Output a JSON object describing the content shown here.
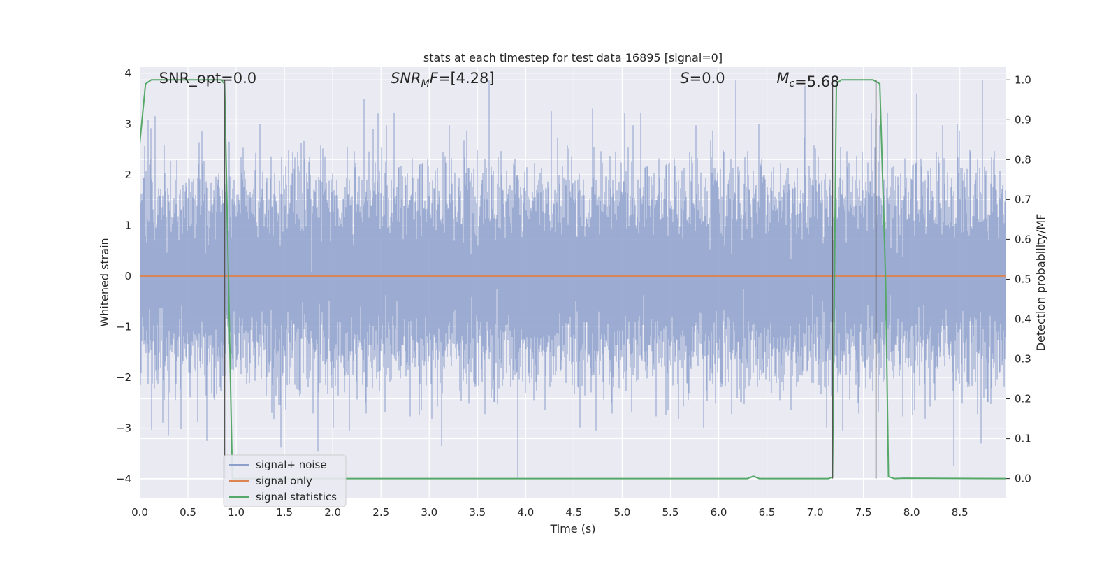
{
  "chart_data": {
    "type": "line",
    "title": "stats at each timestep for test data 16895 [signal=0]",
    "xlabel": "Time (s)",
    "ylabel": "Whitened strain",
    "ylabel_right": "Detection probability/MF",
    "xlim": [
      0.0,
      8.98
    ],
    "ylim": [
      -4.37,
      4.12
    ],
    "ylim_right": [
      -0.048,
      1.032
    ],
    "x_ticks": [
      0.0,
      0.5,
      1.0,
      1.5,
      2.0,
      2.5,
      3.0,
      3.5,
      4.0,
      4.5,
      5.0,
      5.5,
      6.0,
      6.5,
      7.0,
      7.5,
      8.0,
      8.5
    ],
    "x_tick_labels": [
      "0.0",
      "0.5",
      "1.0",
      "1.5",
      "2.0",
      "2.5",
      "3.0",
      "3.5",
      "4.0",
      "4.5",
      "5.0",
      "5.5",
      "6.0",
      "6.5",
      "7.0",
      "7.5",
      "8.0",
      "8.5"
    ],
    "y_ticks": [
      -4,
      -3,
      -2,
      -1,
      0,
      1,
      2,
      3,
      4
    ],
    "y_tick_labels": [
      "−4",
      "−3",
      "−2",
      "−1",
      "0",
      "1",
      "2",
      "3",
      "4"
    ],
    "y_ticks_right": [
      0.0,
      0.1,
      0.2,
      0.3,
      0.4,
      0.5,
      0.6,
      0.7,
      0.8,
      0.9,
      1.0
    ],
    "y_tick_labels_right": [
      "0.0",
      "0.1",
      "0.2",
      "0.3",
      "0.4",
      "0.5",
      "0.6",
      "0.7",
      "0.8",
      "0.9",
      "1.0"
    ],
    "grid": true,
    "legend": {
      "placement": "lower-left",
      "entries": [
        {
          "label": "signal+ noise",
          "color": "#8da0cb"
        },
        {
          "label": "signal only",
          "color": "#dd8452"
        },
        {
          "label": "signal statistics",
          "color": "#55a868"
        }
      ]
    },
    "annotations": [
      {
        "id": "snr-opt",
        "text": "SNR_opt=0.0",
        "x": 0.2
      },
      {
        "id": "snr-mf",
        "text": "SNR_MF=[4.28]",
        "x": 2.6
      },
      {
        "id": "s-stat",
        "text": "S=0.0",
        "x": 5.6
      },
      {
        "id": "mc",
        "text": "M_c=5.68",
        "x": 6.6
      }
    ],
    "series": [
      {
        "name": "signal+ noise",
        "axis": "left",
        "color": "#8da0cb",
        "kind": "noise",
        "x_range": [
          0.0,
          8.98
        ],
        "sample_rate": 2048,
        "std": 0.9,
        "peaks": [
          {
            "x": 0.65,
            "y": 2.85
          },
          {
            "x": 0.93,
            "y": 2.65
          },
          {
            "x": 1.25,
            "y": 3.0
          },
          {
            "x": 2.33,
            "y": 3.5
          },
          {
            "x": 1.85,
            "y": -3.45
          },
          {
            "x": 0.3,
            "y": -3.15
          },
          {
            "x": 3.13,
            "y": -3.35
          },
          {
            "x": 3.92,
            "y": -4.0
          },
          {
            "x": 4.27,
            "y": 3.25
          },
          {
            "x": 4.7,
            "y": 3.3
          },
          {
            "x": 6.42,
            "y": 3.0
          },
          {
            "x": 6.9,
            "y": 3.75
          },
          {
            "x": 8.06,
            "y": 3.6
          },
          {
            "x": 8.48,
            "y": 3.0
          },
          {
            "x": 8.44,
            "y": -3.75
          },
          {
            "x": 8.72,
            "y": -3.3
          },
          {
            "x": 5.85,
            "y": -3.0
          },
          {
            "x": 2.42,
            "y": 2.9
          },
          {
            "x": 7.63,
            "y": 3.1
          },
          {
            "x": 0.7,
            "y": -3.25
          }
        ]
      },
      {
        "name": "signal only",
        "axis": "left",
        "color": "#dd8452",
        "x": [
          0.0,
          8.98
        ],
        "y": [
          0.0,
          0.0
        ]
      },
      {
        "name": "signal statistics",
        "axis": "right",
        "color": "#55a868",
        "x": [
          0.0,
          0.06,
          0.12,
          0.84,
          0.88,
          0.92,
          0.96,
          6.3,
          6.36,
          6.42,
          7.14,
          7.18,
          7.22,
          7.27,
          7.6,
          7.67,
          7.73,
          7.76,
          7.82,
          7.92,
          8.98
        ],
        "y": [
          0.84,
          0.99,
          1.0,
          1.0,
          0.99,
          0.5,
          0.0,
          0.0,
          0.006,
          0.0,
          0.0,
          0.004,
          0.99,
          1.0,
          1.0,
          0.99,
          0.5,
          0.005,
          0.0,
          0.001,
          0.0
        ]
      },
      {
        "name": "marker",
        "axis": "right",
        "color": "#555555",
        "kind": "vlines",
        "x": [
          0.88,
          7.18,
          7.63
        ],
        "y_from": 0.0,
        "y_to": 1.0
      }
    ]
  }
}
